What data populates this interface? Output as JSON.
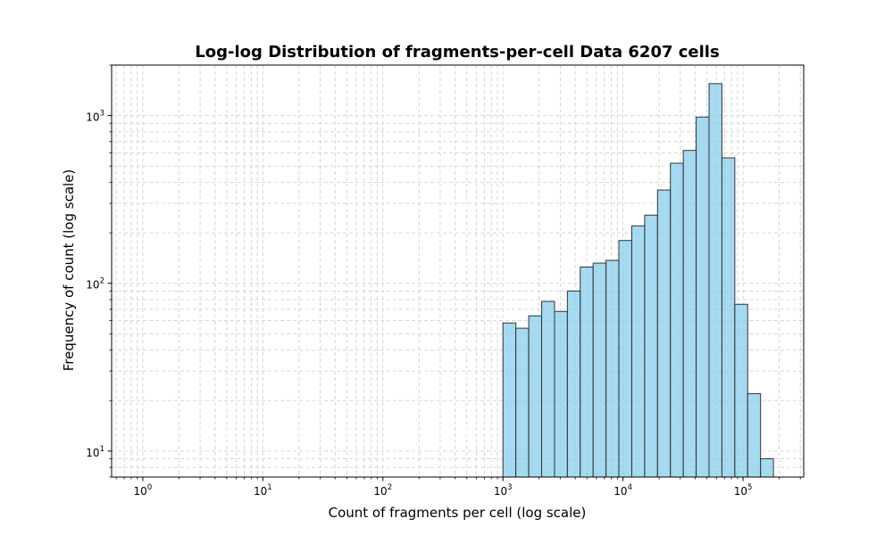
{
  "chart_data": {
    "type": "bar",
    "title": "Log-log Distribution of fragments-per-cell Data 6207 cells",
    "xlabel": "Count of fragments per cell (log scale)",
    "ylabel": "Frequency of count (log scale)",
    "xscale": "log",
    "yscale": "log",
    "xlim": [
      0.55,
      320000
    ],
    "ylim": [
      7,
      2000
    ],
    "grid": true,
    "colors": {
      "bar_fill": "#87CEEB",
      "bar_edge": "#333333",
      "grid": "#cccccc"
    },
    "x_ticks": [
      {
        "base": "10",
        "exp": "0",
        "value": 1
      },
      {
        "base": "10",
        "exp": "1",
        "value": 10
      },
      {
        "base": "10",
        "exp": "2",
        "value": 100
      },
      {
        "base": "10",
        "exp": "3",
        "value": 1000
      },
      {
        "base": "10",
        "exp": "4",
        "value": 10000
      },
      {
        "base": "10",
        "exp": "5",
        "value": 100000
      }
    ],
    "y_ticks": [
      {
        "base": "10",
        "exp": "1",
        "value": 10
      },
      {
        "base": "10",
        "exp": "2",
        "value": 100
      },
      {
        "base": "10",
        "exp": "3",
        "value": 1000
      }
    ],
    "bars": [
      {
        "x0": 1000,
        "x1": 1280,
        "value": 58
      },
      {
        "x0": 1280,
        "x1": 1640,
        "value": 54
      },
      {
        "x0": 1640,
        "x1": 2100,
        "value": 64
      },
      {
        "x0": 2100,
        "x1": 2690,
        "value": 78
      },
      {
        "x0": 2690,
        "x1": 3440,
        "value": 68
      },
      {
        "x0": 3440,
        "x1": 4400,
        "value": 90
      },
      {
        "x0": 4400,
        "x1": 5640,
        "value": 125
      },
      {
        "x0": 5640,
        "x1": 7220,
        "value": 132
      },
      {
        "x0": 7220,
        "x1": 9240,
        "value": 137
      },
      {
        "x0": 9240,
        "x1": 11830,
        "value": 180
      },
      {
        "x0": 11830,
        "x1": 15150,
        "value": 220
      },
      {
        "x0": 15150,
        "x1": 19390,
        "value": 255
      },
      {
        "x0": 19390,
        "x1": 24820,
        "value": 360
      },
      {
        "x0": 24820,
        "x1": 31780,
        "value": 520
      },
      {
        "x0": 31780,
        "x1": 40680,
        "value": 620
      },
      {
        "x0": 40680,
        "x1": 52080,
        "value": 980
      },
      {
        "x0": 52080,
        "x1": 66680,
        "value": 1550
      },
      {
        "x0": 66680,
        "x1": 85370,
        "value": 560
      },
      {
        "x0": 85370,
        "x1": 109300,
        "value": 75
      },
      {
        "x0": 109300,
        "x1": 139900,
        "value": 22
      },
      {
        "x0": 139900,
        "x1": 179100,
        "value": 9
      }
    ]
  }
}
